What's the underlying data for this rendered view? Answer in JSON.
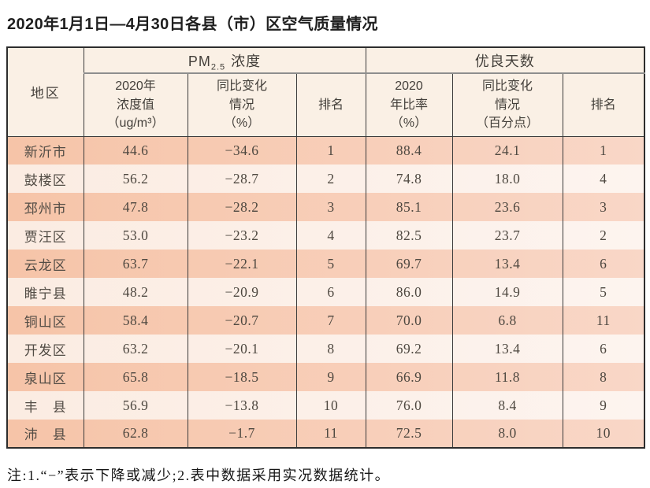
{
  "title": "2020年1月1日—4月30日各县（市）区空气质量情况",
  "table": {
    "header": {
      "region": "地区",
      "pm25_group": {
        "prefix": "PM",
        "sub": "2.5",
        "suffix": "浓度"
      },
      "good_days_group": "优良天数",
      "pm25_value": "2020年\n浓度值\n（ug/m³）",
      "pm25_change": "同比变化\n情况\n（%）",
      "pm25_rank": "排名",
      "good_ratio": "2020\n年比率\n（%）",
      "good_change": "同比变化\n情况\n（百分点）",
      "good_rank": "排名"
    },
    "rows": [
      {
        "region": "新沂市",
        "pm25_value": "44.6",
        "pm25_change": "−34.6",
        "pm25_rank": "1",
        "good_ratio": "88.4",
        "good_change": "24.1",
        "good_rank": "1"
      },
      {
        "region": "鼓楼区",
        "pm25_value": "56.2",
        "pm25_change": "−28.7",
        "pm25_rank": "2",
        "good_ratio": "74.8",
        "good_change": "18.0",
        "good_rank": "4"
      },
      {
        "region": "邳州市",
        "pm25_value": "47.8",
        "pm25_change": "−28.2",
        "pm25_rank": "3",
        "good_ratio": "85.1",
        "good_change": "23.6",
        "good_rank": "3"
      },
      {
        "region": "贾汪区",
        "pm25_value": "53.0",
        "pm25_change": "−23.2",
        "pm25_rank": "4",
        "good_ratio": "82.5",
        "good_change": "23.7",
        "good_rank": "2"
      },
      {
        "region": "云龙区",
        "pm25_value": "63.7",
        "pm25_change": "−22.1",
        "pm25_rank": "5",
        "good_ratio": "69.7",
        "good_change": "13.4",
        "good_rank": "6"
      },
      {
        "region": "睢宁县",
        "pm25_value": "48.2",
        "pm25_change": "−20.9",
        "pm25_rank": "6",
        "good_ratio": "86.0",
        "good_change": "14.9",
        "good_rank": "5"
      },
      {
        "region": "铜山区",
        "pm25_value": "58.4",
        "pm25_change": "−20.7",
        "pm25_rank": "7",
        "good_ratio": "70.0",
        "good_change": "6.8",
        "good_rank": "11"
      },
      {
        "region": "开发区",
        "pm25_value": "63.2",
        "pm25_change": "−20.1",
        "pm25_rank": "8",
        "good_ratio": "69.2",
        "good_change": "13.4",
        "good_rank": "6"
      },
      {
        "region": "泉山区",
        "pm25_value": "65.8",
        "pm25_change": "−18.5",
        "pm25_rank": "9",
        "good_ratio": "66.9",
        "good_change": "11.8",
        "good_rank": "8"
      },
      {
        "region": "丰　县",
        "pm25_value": "56.9",
        "pm25_change": "−13.8",
        "pm25_rank": "10",
        "good_ratio": "76.0",
        "good_change": "8.4",
        "good_rank": "9"
      },
      {
        "region": "沛　县",
        "pm25_value": "62.8",
        "pm25_change": "−1.7",
        "pm25_rank": "11",
        "good_ratio": "72.5",
        "good_change": "8.0",
        "good_rank": "10"
      }
    ]
  },
  "footnote": "注:1.“−”表示下降或减少;2.表中数据采用实况数据统计。",
  "colors": {
    "row_dark": "#f6c4a8",
    "row_light": "#fbece2",
    "header_bg": "#faf0e5",
    "border_dark": "#2d2d2d",
    "group_divider_gray": "#8e8e8e"
  }
}
